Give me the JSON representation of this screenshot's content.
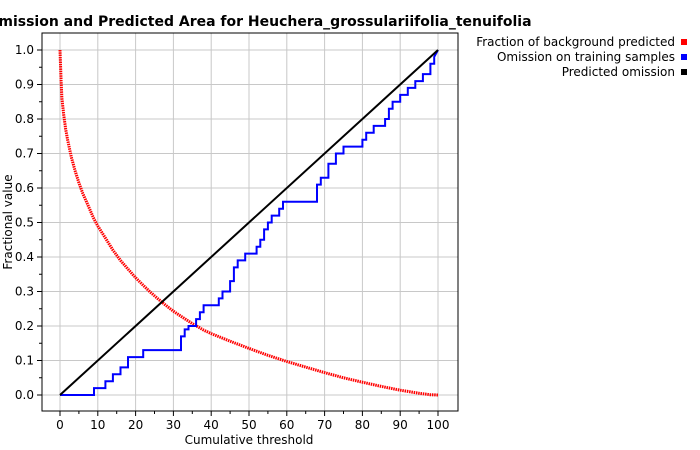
{
  "chart_data": {
    "type": "line",
    "title": "Omission and Predicted Area for Heuchera_grossulariifolia_tenuifolia",
    "xlabel": "Cumulative threshold",
    "ylabel": "Fractional value",
    "xlim": [
      0,
      100
    ],
    "ylim": [
      0,
      1
    ],
    "xticks": [
      "0",
      "10",
      "20",
      "30",
      "40",
      "50",
      "60",
      "70",
      "80",
      "90",
      "100"
    ],
    "yticks": [
      "0.0",
      "0.1",
      "0.2",
      "0.3",
      "0.4",
      "0.5",
      "0.6",
      "0.7",
      "0.8",
      "0.9",
      "1.0"
    ],
    "grid": true,
    "legend_position": "top-right, outside plot",
    "series": [
      {
        "name": "Fraction of background predicted",
        "color": "#ff0000",
        "style": "dotted",
        "x": [
          0,
          0.3,
          0.5,
          1,
          1.5,
          2,
          3,
          4,
          5,
          6,
          7,
          8,
          9,
          10,
          12,
          14,
          16,
          18,
          20,
          22,
          24,
          26,
          28,
          30,
          32,
          35,
          38,
          40,
          45,
          50,
          55,
          60,
          65,
          70,
          75,
          80,
          85,
          90,
          95,
          98,
          100
        ],
        "y": [
          1.0,
          0.91,
          0.86,
          0.81,
          0.77,
          0.74,
          0.69,
          0.65,
          0.615,
          0.585,
          0.56,
          0.535,
          0.51,
          0.49,
          0.455,
          0.42,
          0.39,
          0.365,
          0.34,
          0.318,
          0.297,
          0.278,
          0.26,
          0.243,
          0.228,
          0.207,
          0.188,
          0.178,
          0.156,
          0.135,
          0.115,
          0.097,
          0.081,
          0.065,
          0.05,
          0.037,
          0.025,
          0.014,
          0.005,
          0.001,
          0.0
        ]
      },
      {
        "name": "Omission on training samples",
        "color": "#0000ff",
        "style": "step",
        "x": [
          0,
          9,
          9,
          12,
          12,
          14,
          14,
          16,
          16,
          18,
          18,
          22,
          22,
          24,
          24,
          32,
          32,
          33,
          33,
          34,
          34,
          36,
          36,
          37,
          37,
          38,
          38,
          42,
          42,
          43,
          43,
          45,
          45,
          46,
          46,
          47,
          47,
          49,
          49,
          52,
          52,
          53,
          53,
          54,
          54,
          55,
          55,
          56,
          56,
          58,
          58,
          59,
          59,
          61,
          61,
          62,
          62,
          68,
          68,
          69,
          69,
          71,
          71,
          73,
          73,
          75,
          75,
          80,
          80,
          81,
          81,
          83,
          83,
          86,
          86,
          87,
          87,
          88,
          88,
          90,
          90,
          92,
          92,
          94,
          94,
          96,
          96,
          98,
          98,
          99,
          99,
          100
        ],
        "y": [
          0,
          0,
          0.02,
          0.02,
          0.04,
          0.04,
          0.06,
          0.06,
          0.08,
          0.08,
          0.11,
          0.11,
          0.13,
          0.13,
          0.13,
          0.13,
          0.17,
          0.17,
          0.19,
          0.19,
          0.2,
          0.2,
          0.22,
          0.22,
          0.24,
          0.24,
          0.26,
          0.26,
          0.28,
          0.28,
          0.3,
          0.3,
          0.33,
          0.33,
          0.37,
          0.37,
          0.39,
          0.39,
          0.41,
          0.41,
          0.43,
          0.43,
          0.45,
          0.45,
          0.48,
          0.48,
          0.5,
          0.5,
          0.52,
          0.52,
          0.54,
          0.54,
          0.56,
          0.56,
          0.56,
          0.56,
          0.56,
          0.56,
          0.61,
          0.61,
          0.63,
          0.63,
          0.67,
          0.67,
          0.7,
          0.7,
          0.72,
          0.72,
          0.74,
          0.74,
          0.76,
          0.76,
          0.78,
          0.78,
          0.8,
          0.8,
          0.83,
          0.83,
          0.85,
          0.85,
          0.87,
          0.87,
          0.89,
          0.89,
          0.91,
          0.91,
          0.93,
          0.93,
          0.96,
          0.96,
          0.98,
          1.0
        ]
      },
      {
        "name": "Predicted omission",
        "color": "#000000",
        "style": "solid",
        "x": [
          0,
          100
        ],
        "y": [
          0,
          1
        ]
      }
    ]
  }
}
